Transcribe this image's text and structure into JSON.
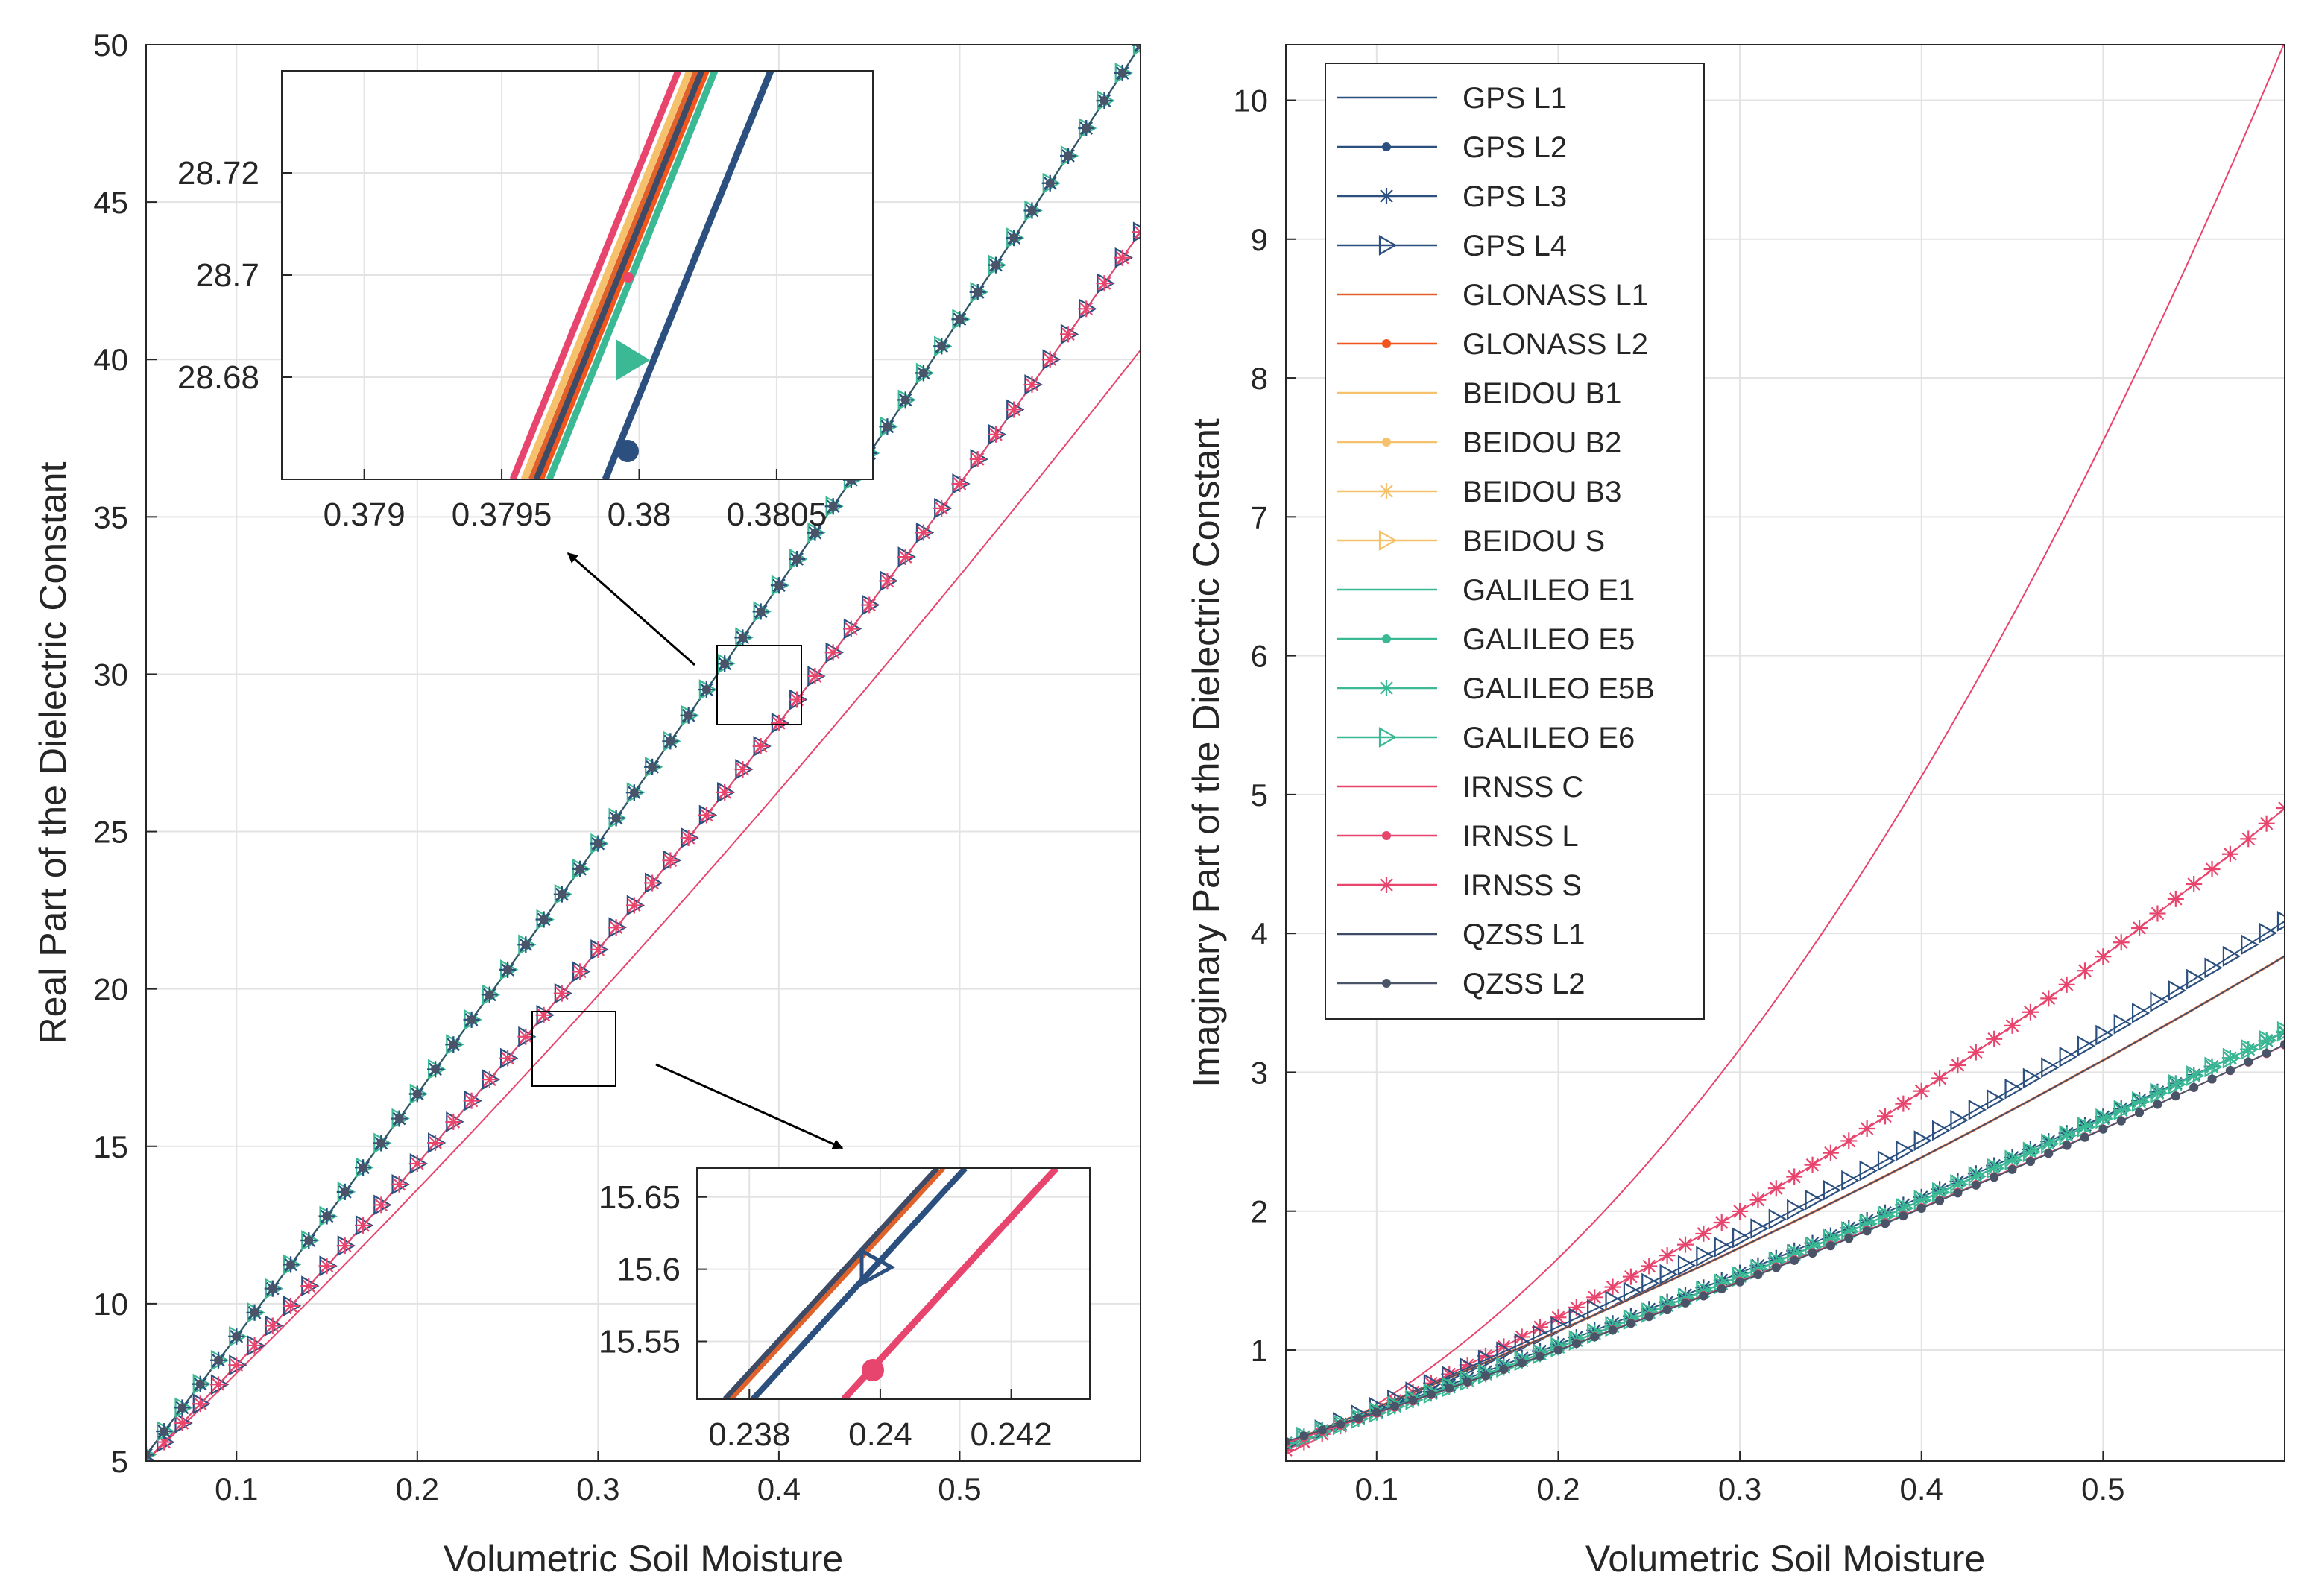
{
  "series_styles": [
    {
      "name": "GPS L1",
      "color": "#2b4f7e",
      "marker": "none"
    },
    {
      "name": "GPS L2",
      "color": "#2b4f7e",
      "marker": "dot"
    },
    {
      "name": "GPS L3",
      "color": "#2b4f7e",
      "marker": "star"
    },
    {
      "name": "GPS L4",
      "color": "#2b4f7e",
      "marker": "tri"
    },
    {
      "name": "GLONASS L1",
      "color": "#e0622a",
      "marker": "none"
    },
    {
      "name": "GLONASS L2",
      "color": "#f2541b",
      "marker": "dot"
    },
    {
      "name": "BEIDOU B1",
      "color": "#f5c16c",
      "marker": "none"
    },
    {
      "name": "BEIDOU B2",
      "color": "#f5c16c",
      "marker": "dot"
    },
    {
      "name": "BEIDOU B3",
      "color": "#f5c16c",
      "marker": "star"
    },
    {
      "name": "BEIDOU S",
      "color": "#f5c16c",
      "marker": "tri"
    },
    {
      "name": "GALILEO E1",
      "color": "#3bb894",
      "marker": "none"
    },
    {
      "name": "GALILEO E5",
      "color": "#3bb894",
      "marker": "dot"
    },
    {
      "name": "GALILEO E5B",
      "color": "#3bb894",
      "marker": "star"
    },
    {
      "name": "GALILEO E6",
      "color": "#3bb894",
      "marker": "tri"
    },
    {
      "name": "IRNSS C",
      "color": "#e8456e",
      "marker": "none"
    },
    {
      "name": "IRNSS L",
      "color": "#e8456e",
      "marker": "dot"
    },
    {
      "name": "IRNSS S",
      "color": "#e8456e",
      "marker": "star"
    },
    {
      "name": "QZSS L1",
      "color": "#3d4b66",
      "marker": "none"
    },
    {
      "name": "QZSS L2",
      "color": "#4a5468",
      "marker": "dot"
    }
  ],
  "chart_data": [
    {
      "type": "line",
      "panel": "left",
      "title": "",
      "xlabel": "Volumetric Soil Moisture",
      "ylabel": "Real Part of the Dielectric Constant",
      "xlim": [
        0.05,
        0.6
      ],
      "ylim": [
        5,
        50
      ],
      "xticks": [
        "0.1",
        "0.2",
        "0.3",
        "0.4",
        "0.5"
      ],
      "yticks": [
        "5",
        "10",
        "15",
        "20",
        "25",
        "30",
        "35",
        "40",
        "45",
        "50"
      ],
      "grid": true,
      "groups": [
        {
          "label": "GPS L1/L2/L3, GLONASS, BEIDOU, GALILEO, IRNSS L, QZSS",
          "y_at_0.05": 5.2,
          "y_at_0.6": 50.0
        },
        {
          "label": "GPS L4, IRNSS S",
          "y_at_0.05": 5.0,
          "y_at_0.6": 43.9
        },
        {
          "label": "IRNSS C",
          "y_at_0.05": 5.0,
          "y_at_0.6": 40.3
        }
      ],
      "insets": [
        {
          "xlim": [
            0.3787,
            0.38085
          ],
          "ylim": [
            28.66,
            28.74
          ],
          "xticks": [
            "0.379",
            "0.3795",
            "0.38",
            "0.3805"
          ],
          "yticks": [
            "28.68",
            "28.7",
            "28.72"
          ]
        },
        {
          "xlim": [
            0.2372,
            0.2432
          ],
          "ylim": [
            15.51,
            15.67
          ],
          "xticks": [
            "0.238",
            "0.24",
            "0.242"
          ],
          "yticks": [
            "15.55",
            "15.6",
            "15.65"
          ]
        }
      ]
    },
    {
      "type": "line",
      "panel": "right",
      "title": "",
      "xlabel": "Volumetric Soil Moisture",
      "ylabel": "Imaginary Part of the Dielectric Constant",
      "xlim": [
        0.05,
        0.6
      ],
      "ylim": [
        0.2,
        10.4
      ],
      "xticks": [
        "0.1",
        "0.2",
        "0.3",
        "0.4",
        "0.5"
      ],
      "yticks": [
        "1",
        "2",
        "3",
        "4",
        "5",
        "6",
        "7",
        "8",
        "9",
        "10"
      ],
      "grid": true,
      "legend_position": "top-left",
      "end_values_at_0.6": {
        "IRNSS C": 10.4,
        "IRNSS S": 4.9,
        "GPS L4": 4.1,
        "GLONASS L1": 3.85,
        "GPS L3": 3.4,
        "GALILEO E6": 3.35,
        "IRNSS L": 3.25,
        "QZSS L2": 3.3
      },
      "legend": [
        "GPS L1",
        "GPS L2",
        "GPS L3",
        "GPS L4",
        "GLONASS L1",
        "GLONASS L2",
        "BEIDOU B1",
        "BEIDOU B2",
        "BEIDOU B3",
        "BEIDOU S",
        "GALILEO E1",
        "GALILEO E5",
        "GALILEO E5B",
        "GALILEO E6",
        "IRNSS C",
        "IRNSS L",
        "IRNSS S",
        "QZSS L1",
        "QZSS L2"
      ]
    }
  ]
}
